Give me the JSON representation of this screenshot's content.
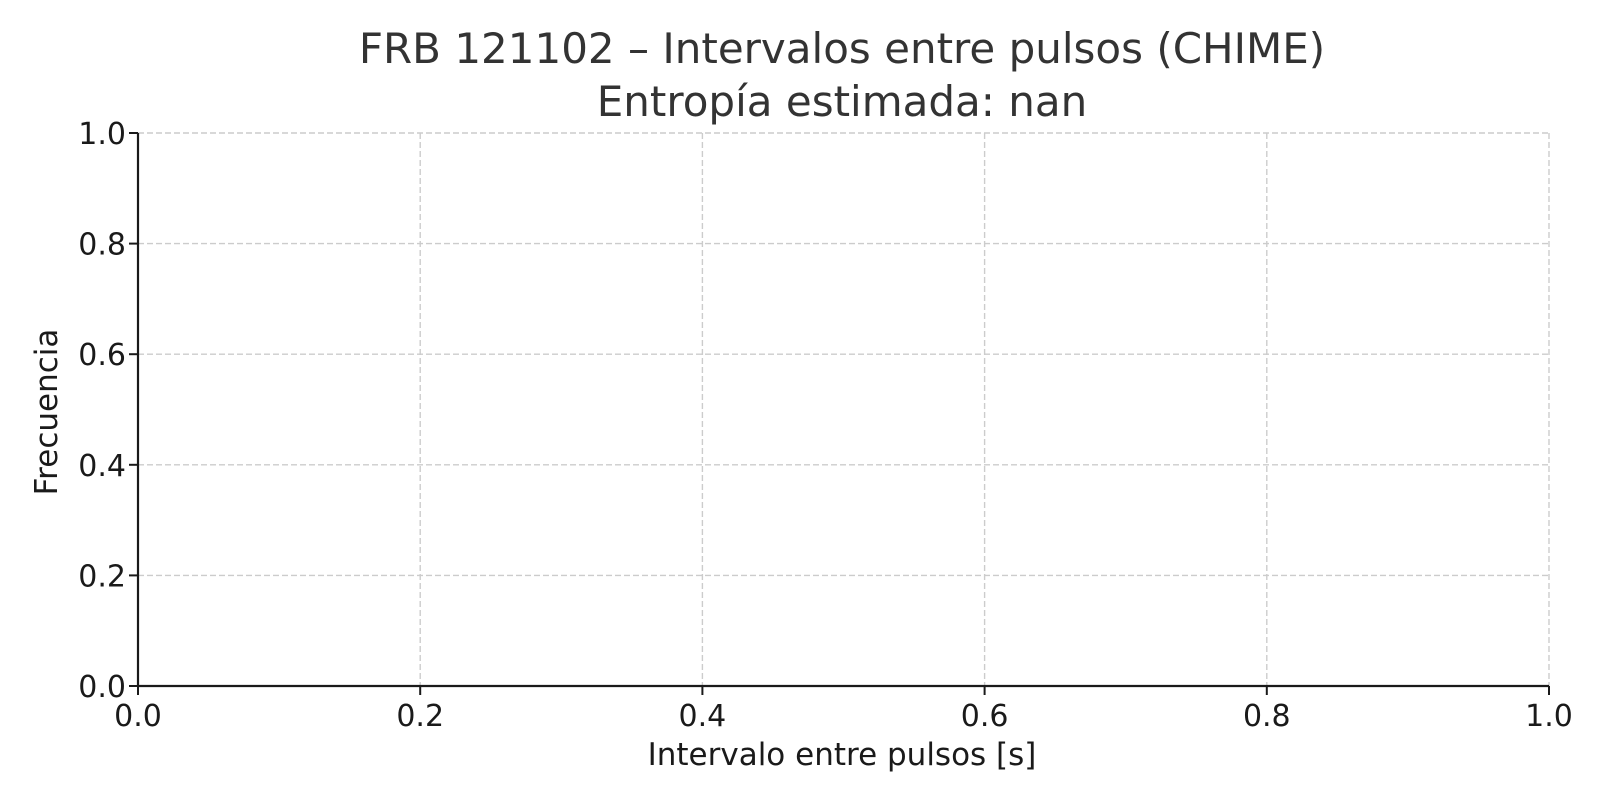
{
  "chart_data": {
    "type": "bar",
    "title": "FRB 121102 – Intervalos entre pulsos (CHIME)",
    "subtitle": "Entropía estimada: nan",
    "xlabel": "Intervalo entre pulsos [s]",
    "ylabel": "Frecuencia",
    "xlim": [
      0.0,
      1.0
    ],
    "ylim": [
      0.0,
      1.0
    ],
    "xticks": [
      "0.0",
      "0.2",
      "0.4",
      "0.6",
      "0.8",
      "1.0"
    ],
    "yticks": [
      "0.0",
      "0.2",
      "0.4",
      "0.6",
      "0.8",
      "1.0"
    ],
    "xtick_values": [
      0.0,
      0.2,
      0.4,
      0.6,
      0.8,
      1.0
    ],
    "ytick_values": [
      0.0,
      0.2,
      0.4,
      0.6,
      0.8,
      1.0
    ],
    "grid": true,
    "values": [],
    "categories": []
  }
}
